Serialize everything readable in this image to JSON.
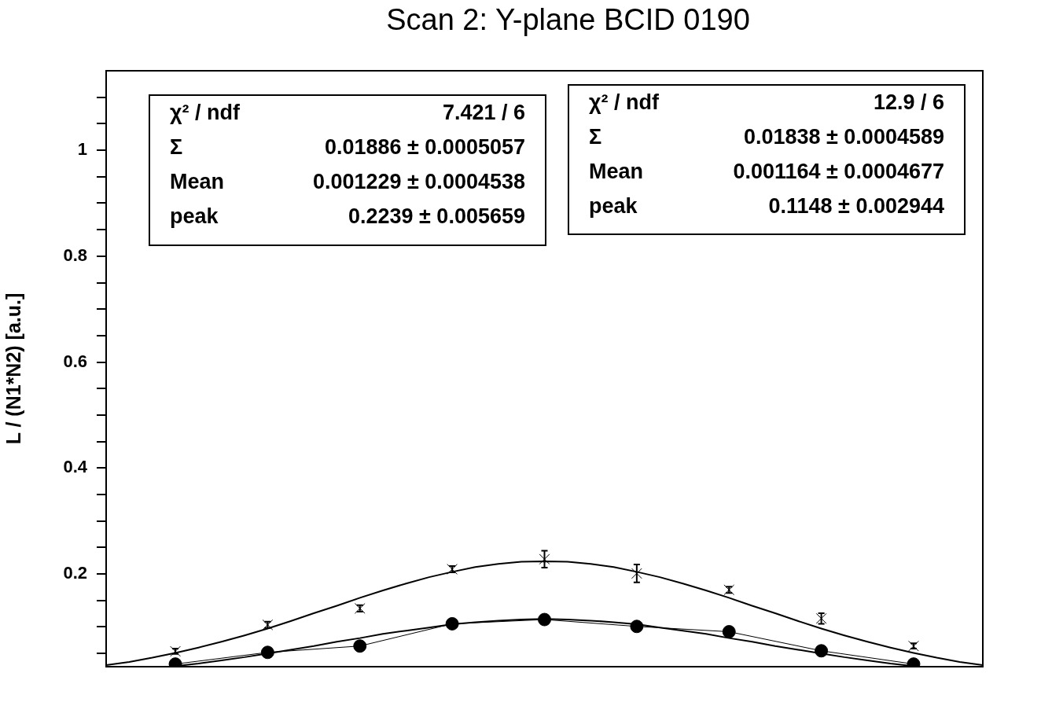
{
  "chart_data": {
    "type": "line",
    "title": "Scan 2: Y-plane BCID 0190",
    "ylabel": "L / (N1*N2) [a.u.]",
    "categories": [
      null,
      null,
      null,
      null,
      null,
      null,
      null,
      null,
      null,
      null,
      null,
      null,
      null,
      null,
      null,
      null,
      null,
      null,
      null,
      null,
      null,
      null,
      null,
      null,
      null,
      null,
      null,
      null,
      null,
      null,
      null,
      null,
      null,
      null,
      null,
      null,
      null,
      null,
      null
    ],
    "series": [
      {
        "type": "line",
        "color": "#000000",
        "marker": "none",
        "values": [
          0.028,
          0.034,
          0.042,
          0.051,
          0.061,
          0.072,
          0.084,
          0.097,
          0.111,
          0.126,
          0.14,
          0.155,
          0.169,
          0.182,
          0.194,
          0.204,
          0.213,
          0.219,
          0.223,
          0.224,
          0.223,
          0.219,
          0.213,
          0.204,
          0.194,
          0.182,
          0.169,
          0.155,
          0.14,
          0.126,
          0.111,
          0.097,
          0.084,
          0.072,
          0.061,
          0.051,
          0.042,
          0.034,
          0.028
        ]
      },
      {
        "type": "line",
        "color": "#000000",
        "marker": "none",
        "values": [
          null,
          null,
          null,
          0.026,
          0.031,
          0.037,
          0.043,
          0.05,
          0.057,
          0.064,
          0.072,
          0.079,
          0.087,
          0.093,
          0.099,
          0.105,
          0.109,
          0.112,
          0.114,
          0.115,
          0.114,
          0.112,
          0.109,
          0.105,
          0.099,
          0.093,
          0.087,
          0.079,
          0.072,
          0.064,
          0.057,
          0.05,
          0.043,
          0.037,
          0.031,
          0.026,
          null,
          null,
          null
        ]
      },
      {
        "type": "scatter",
        "color": "#000000",
        "marker": "cross",
        "values": [
          null,
          null,
          null,
          0.054,
          null,
          null,
          null,
          0.104,
          null,
          null,
          null,
          0.135,
          null,
          null,
          null,
          0.209,
          null,
          null,
          null,
          0.228,
          null,
          null,
          null,
          0.201,
          null,
          null,
          null,
          0.17,
          null,
          null,
          null,
          0.116,
          null,
          null,
          null,
          0.064,
          null,
          null,
          null
        ],
        "errors": [
          null,
          null,
          null,
          0.005,
          null,
          null,
          null,
          0.006,
          null,
          null,
          null,
          0.006,
          null,
          null,
          null,
          0.006,
          null,
          null,
          null,
          0.016,
          null,
          null,
          null,
          0.017,
          null,
          null,
          null,
          0.006,
          null,
          null,
          null,
          0.01,
          null,
          null,
          null,
          0.005,
          null,
          null,
          null
        ]
      },
      {
        "type": "line",
        "color": "#000000",
        "marker": "circle",
        "values": [
          null,
          null,
          null,
          0.03,
          null,
          null,
          null,
          0.052,
          null,
          null,
          null,
          0.064,
          null,
          null,
          null,
          0.106,
          null,
          null,
          null,
          0.114,
          null,
          null,
          null,
          0.101,
          null,
          null,
          null,
          0.091,
          null,
          null,
          null,
          0.055,
          null,
          null,
          null,
          0.03,
          null,
          null,
          null
        ]
      }
    ],
    "ylim": [
      0.025,
      1.15
    ],
    "yticks": [
      {
        "value": 0.05,
        "label": null
      },
      {
        "value": 0.1,
        "label": null
      },
      {
        "value": 0.15,
        "label": null
      },
      0.2,
      {
        "value": 0.25,
        "label": null
      },
      {
        "value": 0.3,
        "label": null
      },
      {
        "value": 0.35,
        "label": null
      },
      0.4,
      {
        "value": 0.45,
        "label": null
      },
      {
        "value": 0.5,
        "label": null
      },
      {
        "value": 0.55,
        "label": null
      },
      0.6,
      {
        "value": 0.65,
        "label": null
      },
      {
        "value": 0.7,
        "label": null
      },
      {
        "value": 0.75,
        "label": null
      },
      0.8,
      {
        "value": 0.85,
        "label": null
      },
      {
        "value": 0.9,
        "label": null
      },
      {
        "value": 0.95,
        "label": null
      },
      1,
      {
        "value": 1.05,
        "label": null
      },
      {
        "value": 1.1,
        "label": null
      }
    ],
    "tick_labels": "y",
    "annotations": [
      "χ² / ndf",
      "7.421 / 6",
      "Σ",
      "0.01886 ± 0.0005057",
      "Mean",
      "0.001229 ± 0.0004538",
      "peak",
      "0.2239 ± 0.005659",
      "χ² / ndf",
      "12.9 / 6",
      "Σ",
      "0.01838 ± 0.0004589",
      "Mean",
      "0.001164 ± 0.0004677",
      "peak",
      "0.1148 ± 0.002944"
    ]
  }
}
